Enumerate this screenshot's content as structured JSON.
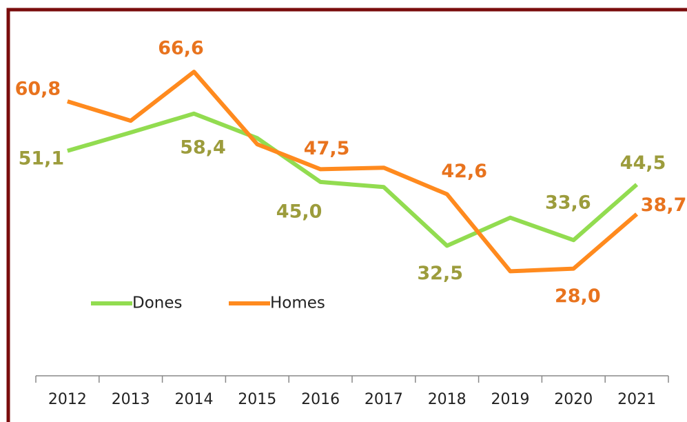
{
  "chart_data": {
    "type": "line",
    "categories": [
      "2012",
      "2013",
      "2014",
      "2015",
      "2016",
      "2017",
      "2018",
      "2019",
      "2020",
      "2021"
    ],
    "series": [
      {
        "name": "Dones",
        "color": "#92dc50",
        "label_color": "#9c9c3c",
        "values": [
          51.1,
          54.7,
          58.4,
          53.6,
          45.0,
          44.0,
          32.5,
          38.0,
          33.6,
          44.5
        ],
        "value_labels": [
          "51,1",
          null,
          "58,4",
          null,
          "45,0",
          null,
          "32,5",
          null,
          "33,6",
          "44,5"
        ]
      },
      {
        "name": "Homes",
        "color": "#ff8a1e",
        "label_color": "#e8731e",
        "values": [
          60.8,
          57.0,
          66.6,
          52.4,
          47.5,
          47.8,
          42.6,
          27.5,
          28.0,
          38.7
        ],
        "value_labels": [
          "60,8",
          null,
          "66,6",
          null,
          "47,5",
          null,
          "42,6",
          null,
          "28,0",
          "38,7"
        ]
      }
    ],
    "ylim": [
      7,
      80
    ],
    "legend": "center-left"
  }
}
